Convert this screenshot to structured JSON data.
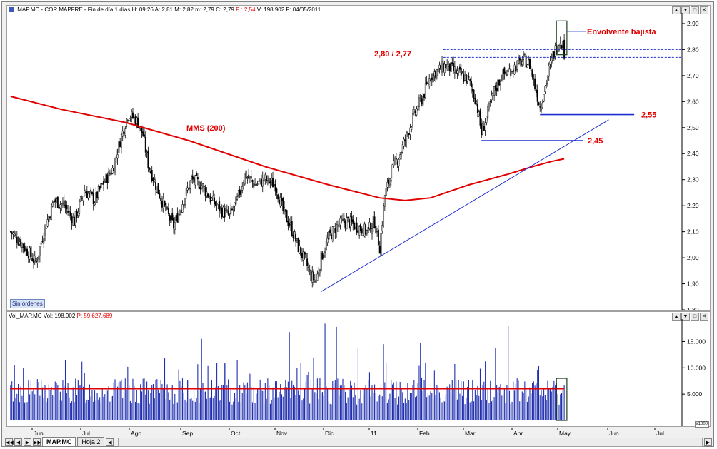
{
  "price_header": {
    "symbol": "MAP.MC",
    "name": "COR.MAPFRE",
    "period": "Fin de día 1 días",
    "high": "H: 09:26",
    "open": "A: 2,81",
    "max": "M: 2,82",
    "min": "m: 2,79",
    "close": "C: 2,79",
    "p_value": "P : 2,54",
    "volume": "V: 198.902",
    "date": "F: 04/05/2011"
  },
  "vol_header": {
    "name": "Vol_MAP.MC",
    "vol": "Vol: 198.902",
    "p_value": "P: 59.627.689"
  },
  "window_controls": [
    "▲",
    "▼",
    "□",
    "✕"
  ],
  "no_orders_label": "Sin órdenes",
  "annotations": {
    "envolvente": "Envolvente bajista",
    "resistance": "2,80 / 2,77",
    "mms": "MMS (200)",
    "support_255": "2,55",
    "support_245": "2,45"
  },
  "x_scale_badge": "x1000",
  "tabs": [
    {
      "label": "MAP.MC",
      "active": true
    },
    {
      "label": "Hoja 2",
      "active": false
    }
  ],
  "nav_buttons": [
    "◀◀",
    "◀",
    "▶",
    "▶▶"
  ],
  "colors": {
    "candle": "#000000",
    "mma": "#e00000",
    "trendline": "#1f2fd0",
    "volume_bar": "#1f2fb0",
    "annotation_red": "#e00000",
    "support": "#1f2fd0"
  },
  "chart_data": [
    {
      "type": "candlestick",
      "title": "",
      "x_labels": [
        "Jun",
        "Jul",
        "Ago",
        "Sep",
        "Oct",
        "Nov",
        "Dic",
        "11",
        "Feb",
        "Mar",
        "Abr",
        "May",
        "Jun",
        "Jul"
      ],
      "y_ticks": [
        "2,90",
        "2,80",
        "2,70",
        "2,60",
        "2,50",
        "2,40",
        "2,30",
        "2,20",
        "2,10",
        "2,00",
        "1,90",
        "1,80"
      ],
      "ylim": [
        1.8,
        2.93
      ],
      "close_path_anchors": [
        [
          0,
          2.1
        ],
        [
          8,
          2.06
        ],
        [
          14,
          2.02
        ],
        [
          20,
          1.98
        ],
        [
          26,
          2.1
        ],
        [
          34,
          2.22
        ],
        [
          42,
          2.2
        ],
        [
          50,
          2.14
        ],
        [
          58,
          2.26
        ],
        [
          66,
          2.22
        ],
        [
          72,
          2.28
        ],
        [
          80,
          2.34
        ],
        [
          86,
          2.45
        ],
        [
          92,
          2.55
        ],
        [
          96,
          2.54
        ],
        [
          100,
          2.52
        ],
        [
          104,
          2.47
        ],
        [
          108,
          2.36
        ],
        [
          114,
          2.28
        ],
        [
          122,
          2.18
        ],
        [
          128,
          2.12
        ],
        [
          134,
          2.2
        ],
        [
          142,
          2.3
        ],
        [
          150,
          2.28
        ],
        [
          158,
          2.22
        ],
        [
          166,
          2.18
        ],
        [
          172,
          2.16
        ],
        [
          178,
          2.22
        ],
        [
          184,
          2.32
        ],
        [
          192,
          2.28
        ],
        [
          200,
          2.3
        ],
        [
          208,
          2.28
        ],
        [
          214,
          2.18
        ],
        [
          220,
          2.12
        ],
        [
          226,
          2.04
        ],
        [
          232,
          1.98
        ],
        [
          236,
          1.93
        ],
        [
          240,
          1.91
        ],
        [
          244,
          2.0
        ],
        [
          250,
          2.08
        ],
        [
          256,
          2.12
        ],
        [
          264,
          2.14
        ],
        [
          272,
          2.12
        ],
        [
          280,
          2.1
        ],
        [
          286,
          2.14
        ],
        [
          290,
          2.04
        ],
        [
          294,
          2.24
        ],
        [
          300,
          2.34
        ],
        [
          306,
          2.4
        ],
        [
          312,
          2.48
        ],
        [
          318,
          2.56
        ],
        [
          324,
          2.62
        ],
        [
          330,
          2.7
        ],
        [
          336,
          2.72
        ],
        [
          342,
          2.74
        ],
        [
          348,
          2.72
        ],
        [
          354,
          2.7
        ],
        [
          360,
          2.68
        ],
        [
          366,
          2.6
        ],
        [
          370,
          2.48
        ],
        [
          374,
          2.54
        ],
        [
          380,
          2.64
        ],
        [
          386,
          2.7
        ],
        [
          392,
          2.72
        ],
        [
          398,
          2.74
        ],
        [
          404,
          2.76
        ],
        [
          408,
          2.74
        ],
        [
          412,
          2.66
        ],
        [
          416,
          2.58
        ],
        [
          420,
          2.66
        ],
        [
          424,
          2.74
        ],
        [
          428,
          2.8
        ],
        [
          432,
          2.84
        ],
        [
          434,
          2.82
        ],
        [
          435,
          2.79
        ]
      ],
      "sma200": {
        "name": "MMS (200)",
        "points": [
          [
            0,
            2.62
          ],
          [
            40,
            2.57
          ],
          [
            90,
            2.52
          ],
          [
            140,
            2.45
          ],
          [
            200,
            2.35
          ],
          [
            250,
            2.28
          ],
          [
            290,
            2.23
          ],
          [
            310,
            2.22
          ],
          [
            330,
            2.23
          ],
          [
            360,
            2.28
          ],
          [
            390,
            2.32
          ],
          [
            410,
            2.35
          ],
          [
            425,
            2.37
          ],
          [
            435,
            2.38
          ]
        ]
      },
      "trendline": {
        "from": [
          244,
          1.87
        ],
        "to": [
          470,
          2.53
        ]
      },
      "resistance_lines": [
        2.8,
        2.77
      ],
      "support_lines": [
        {
          "value": 2.55,
          "from_bar": 416,
          "to_bar": 490
        },
        {
          "value": 2.45,
          "from_bar": 370,
          "to_bar": 450
        }
      ],
      "highlight_box": {
        "from_bar": 430,
        "to_bar": 436,
        "low": 2.78,
        "high": 2.91
      }
    },
    {
      "type": "bar",
      "title": "",
      "y_ticks": [
        "15.000",
        "10.000",
        "5.000"
      ],
      "ylim": [
        0,
        19000
      ],
      "unit": "x1000",
      "average_level": 6000
    }
  ]
}
